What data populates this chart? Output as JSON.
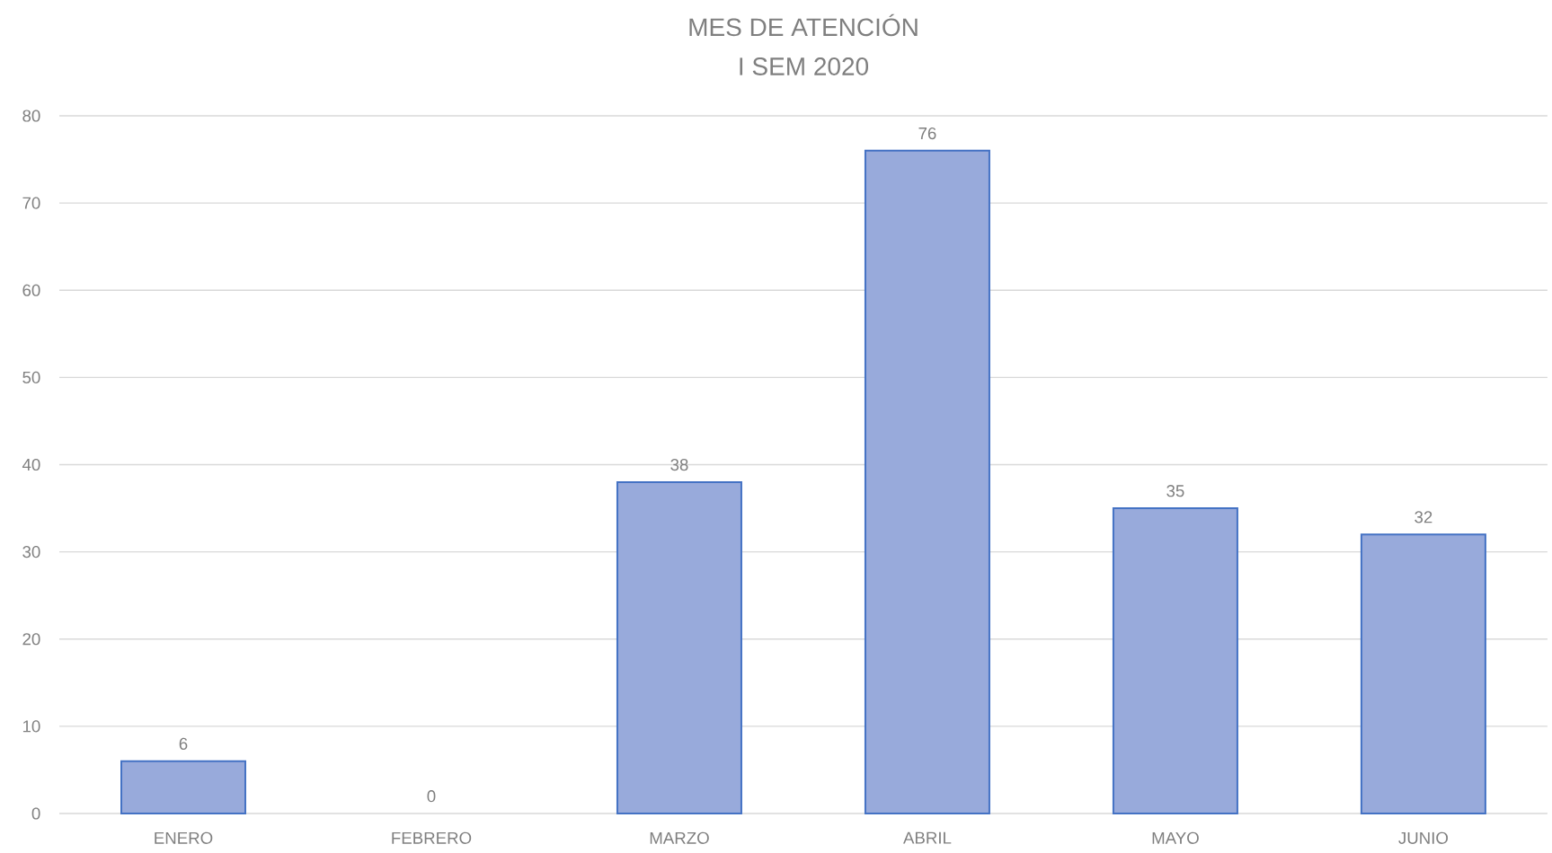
{
  "chart_data": {
    "type": "bar",
    "title": "MES DE ATENCIÓN",
    "subtitle": "I SEM 2020",
    "categories": [
      "ENERO",
      "FEBRERO",
      "MARZO",
      "ABRIL",
      "MAYO",
      "JUNIO"
    ],
    "values": [
      6,
      0,
      38,
      76,
      35,
      32
    ],
    "color": "#98aadb",
    "ylim": [
      0,
      80
    ],
    "yticks": [
      0,
      10,
      20,
      30,
      40,
      50,
      60,
      70,
      80
    ],
    "grid": "y",
    "data_labels": true
  }
}
